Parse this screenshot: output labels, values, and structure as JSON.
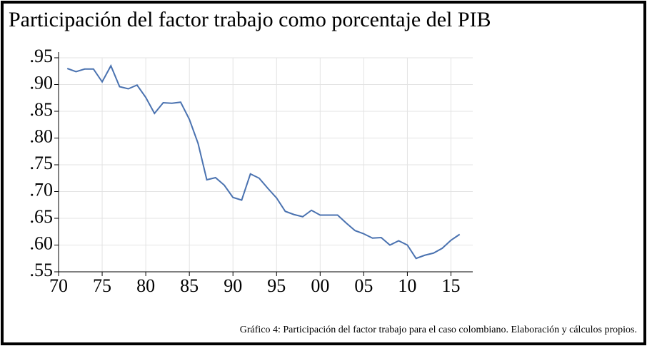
{
  "chart_data": {
    "type": "line",
    "title": "Participación del factor trabajo como porcentaje del PIB",
    "caption": "Gráfico 4: Participación del factor trabajo para el caso colombiano. Elaboración y cálculos propios.",
    "x": [
      1971,
      1972,
      1973,
      1974,
      1975,
      1976,
      1977,
      1978,
      1979,
      1980,
      1981,
      1982,
      1983,
      1984,
      1985,
      1986,
      1987,
      1988,
      1989,
      1990,
      1991,
      1992,
      1993,
      1994,
      1995,
      1996,
      1997,
      1998,
      1999,
      2000,
      2001,
      2002,
      2003,
      2004,
      2005,
      2006,
      2007,
      2008,
      2009,
      2010,
      2011,
      2012,
      2013,
      2014,
      2015,
      2016
    ],
    "series": [
      {
        "color": "#4a72b0",
        "values": [
          0.93,
          0.924,
          0.929,
          0.929,
          0.905,
          0.935,
          0.896,
          0.892,
          0.899,
          0.876,
          0.846,
          0.866,
          0.865,
          0.867,
          0.835,
          0.79,
          0.722,
          0.726,
          0.712,
          0.689,
          0.684,
          0.733,
          0.725,
          0.706,
          0.688,
          0.663,
          0.657,
          0.653,
          0.665,
          0.656,
          0.656,
          0.656,
          0.641,
          0.627,
          0.621,
          0.613,
          0.614,
          0.6,
          0.608,
          0.6,
          0.575,
          0.581,
          0.585,
          0.594,
          0.609,
          0.62
        ]
      }
    ],
    "xlim": [
      1970,
      2017.5
    ],
    "xticks": [
      {
        "value": 1970,
        "label": "70"
      },
      {
        "value": 1975,
        "label": "75"
      },
      {
        "value": 1980,
        "label": "80"
      },
      {
        "value": 1985,
        "label": "85"
      },
      {
        "value": 1990,
        "label": "90"
      },
      {
        "value": 1995,
        "label": "95"
      },
      {
        "value": 2000,
        "label": "00"
      },
      {
        "value": 2005,
        "label": "05"
      },
      {
        "value": 2010,
        "label": "10"
      },
      {
        "value": 2015,
        "label": "15"
      }
    ],
    "ylim": [
      0.55,
      0.95
    ],
    "yticks": [
      {
        "value": 0.55,
        "label": ".55"
      },
      {
        "value": 0.6,
        "label": ".60"
      },
      {
        "value": 0.65,
        "label": ".65"
      },
      {
        "value": 0.7,
        "label": ".70"
      },
      {
        "value": 0.75,
        "label": ".75"
      },
      {
        "value": 0.8,
        "label": ".80"
      },
      {
        "value": 0.85,
        "label": ".85"
      },
      {
        "value": 0.9,
        "label": ".90"
      },
      {
        "value": 0.95,
        "label": ".95"
      }
    ],
    "grid": true
  }
}
